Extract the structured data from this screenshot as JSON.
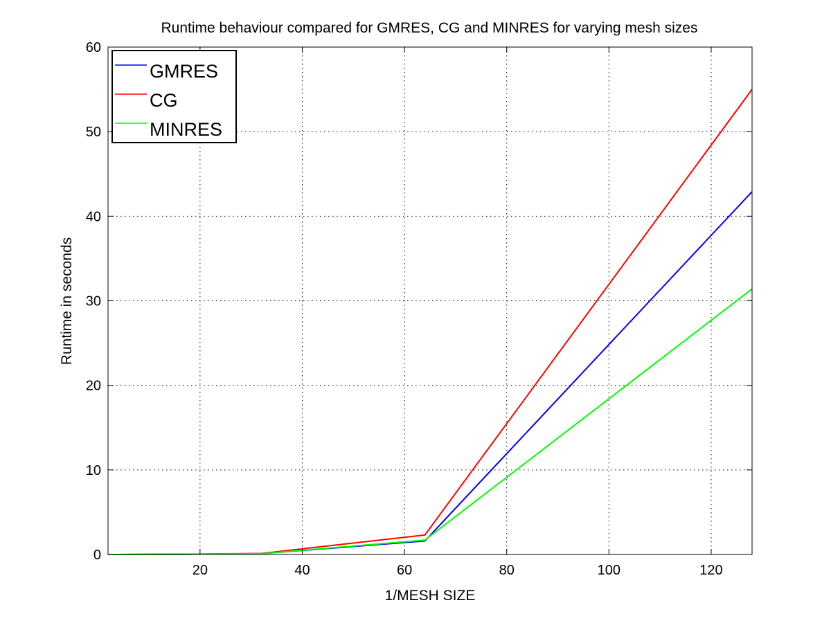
{
  "chart_data": {
    "type": "line",
    "title": "Runtime behaviour compared for GMRES, CG and MINRES for varying mesh sizes",
    "xlabel": "1/MESH SIZE",
    "ylabel": "Runtime in seconds",
    "xlim": [
      2,
      128
    ],
    "ylim": [
      0,
      60
    ],
    "x_ticks": [
      20,
      40,
      60,
      80,
      100,
      120
    ],
    "y_ticks": [
      0,
      10,
      20,
      30,
      40,
      50,
      60
    ],
    "grid": true,
    "legend_position": "top-left",
    "x": [
      2,
      4,
      8,
      16,
      32,
      64,
      128
    ],
    "series": [
      {
        "name": "GMRES",
        "color": "#0000ff",
        "values": [
          0.0,
          0.0,
          0.01,
          0.02,
          0.1,
          1.6,
          42.9
        ]
      },
      {
        "name": "CG",
        "color": "#ff0000",
        "values": [
          0.0,
          0.0,
          0.01,
          0.03,
          0.12,
          2.3,
          55.0
        ]
      },
      {
        "name": "MINRES",
        "color": "#00ff00",
        "values": [
          0.0,
          0.0,
          0.01,
          0.02,
          0.09,
          1.7,
          31.4
        ]
      }
    ]
  }
}
